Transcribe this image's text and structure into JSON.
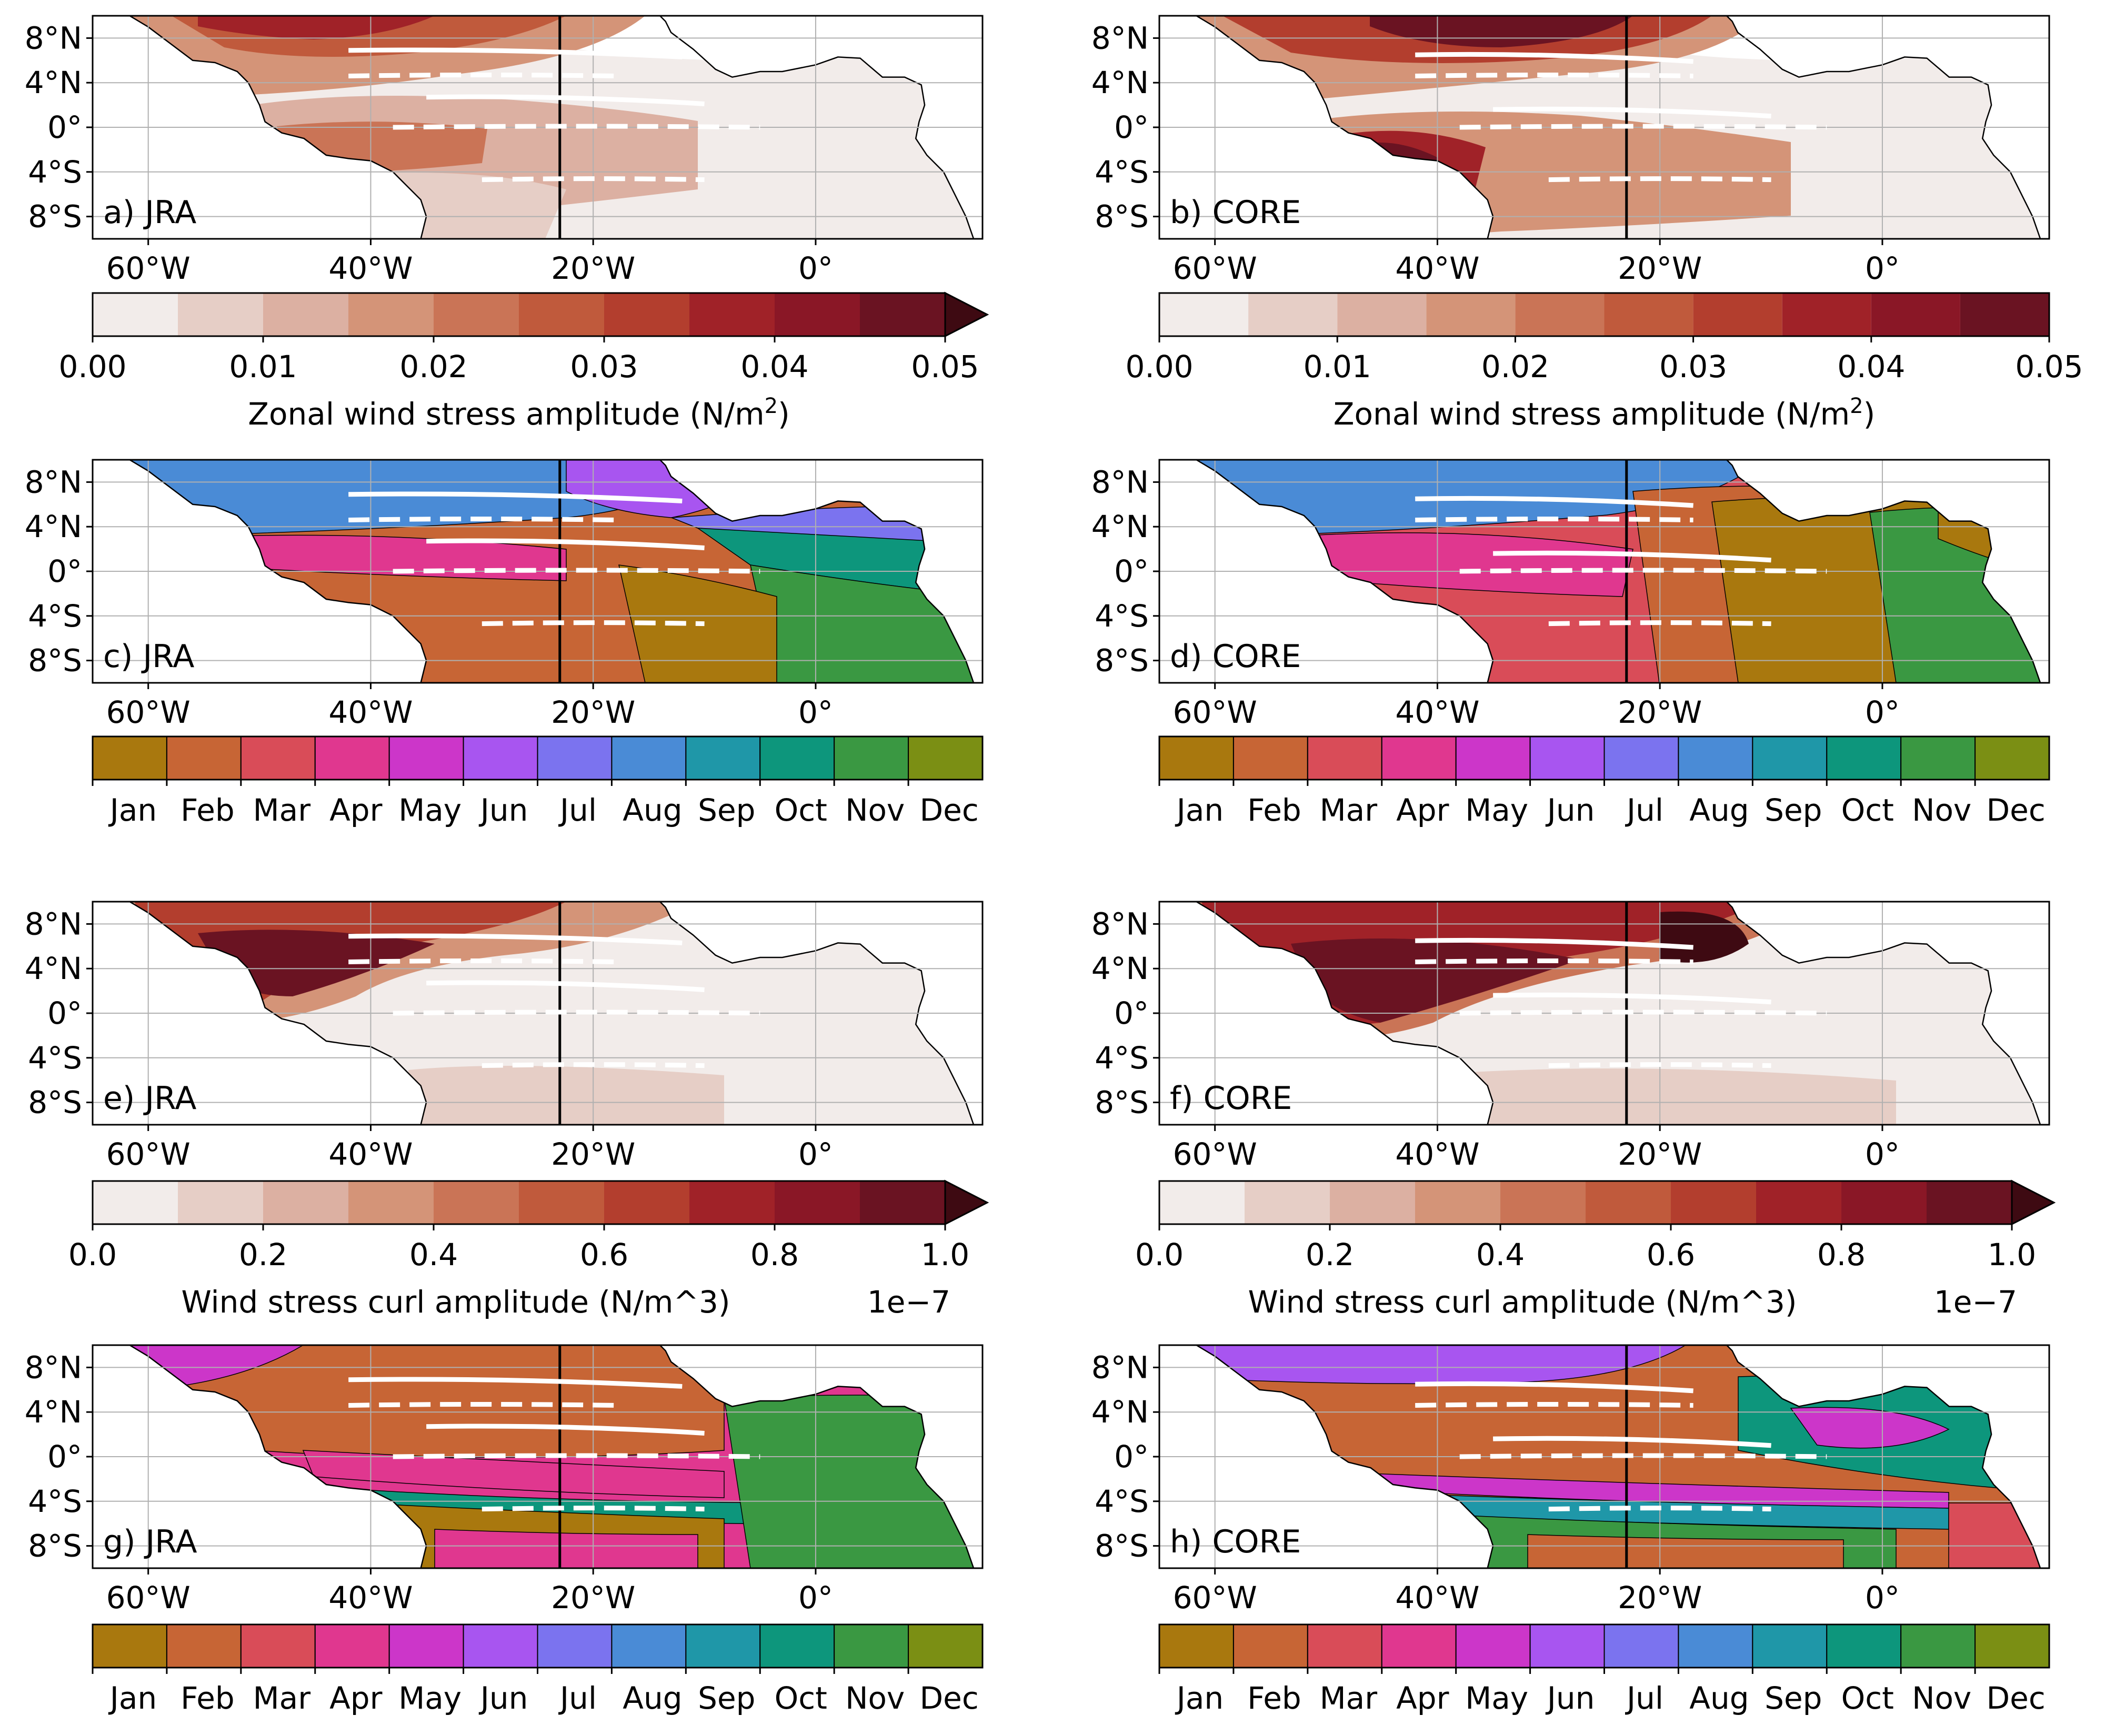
{
  "lat_labels": [
    "8°N",
    "4°N",
    "0°",
    "4°S",
    "8°S"
  ],
  "lon_labels": [
    "60°W",
    "40°W",
    "20°W",
    "0°"
  ],
  "panels": [
    {
      "label": "a) JRA",
      "kind": "amp",
      "product": "JRA"
    },
    {
      "label": "b) CORE",
      "kind": "amp",
      "product": "CORE"
    },
    {
      "label": "c) JRA",
      "kind": "phase",
      "product": "JRA"
    },
    {
      "label": "d) CORE",
      "kind": "phase",
      "product": "CORE"
    },
    {
      "label": "e) JRA",
      "kind": "curl",
      "product": "JRA"
    },
    {
      "label": "f) CORE",
      "kind": "curl",
      "product": "CORE"
    },
    {
      "label": "g) JRA",
      "kind": "phase",
      "product": "JRA"
    },
    {
      "label": "h) CORE",
      "kind": "phase",
      "product": "CORE"
    }
  ],
  "colorbars": [
    {
      "id": "cb1",
      "title": "Zonal wind stress amplitude (N/m",
      "title_sup": "2",
      "title_end": ")",
      "ticks": [
        "0.00",
        "0.01",
        "0.02",
        "0.03",
        "0.04",
        "0.05"
      ],
      "extend": true
    },
    {
      "id": "cb2",
      "title": "Zonal wind stress amplitude (N/m",
      "title_sup": "2",
      "title_end": ")",
      "ticks": [
        "0.00",
        "0.01",
        "0.02",
        "0.03",
        "0.04",
        "0.05"
      ],
      "extend": false
    },
    {
      "id": "cb3",
      "months": [
        "Jan",
        "Feb",
        "Mar",
        "Apr",
        "May",
        "Jun",
        "Jul",
        "Aug",
        "Sep",
        "Oct",
        "Nov",
        "Dec"
      ]
    },
    {
      "id": "cb4",
      "months": [
        "Jan",
        "Feb",
        "Mar",
        "Apr",
        "May",
        "Jun",
        "Jul",
        "Aug",
        "Sep",
        "Oct",
        "Nov",
        "Dec"
      ]
    },
    {
      "id": "cb5",
      "title": "Wind stress curl amplitude (N/m^3)",
      "multiplier": "1e−7",
      "ticks": [
        "0.0",
        "0.2",
        "0.4",
        "0.6",
        "0.8",
        "1.0"
      ],
      "extend": true
    },
    {
      "id": "cb6",
      "title": "Wind stress curl amplitude (N/m^3)",
      "multiplier": "1e−7",
      "ticks": [
        "0.0",
        "0.2",
        "0.4",
        "0.6",
        "0.8",
        "1.0"
      ],
      "extend": true
    },
    {
      "id": "cb7",
      "months": [
        "Jan",
        "Feb",
        "Mar",
        "Apr",
        "May",
        "Jun",
        "Jul",
        "Aug",
        "Sep",
        "Oct",
        "Nov",
        "Dec"
      ]
    },
    {
      "id": "cb8",
      "months": [
        "Jan",
        "Feb",
        "Mar",
        "Apr",
        "May",
        "Jun",
        "Jul",
        "Aug",
        "Sep",
        "Oct",
        "Nov",
        "Dec"
      ]
    }
  ],
  "colors": {
    "amplitude_scale": [
      "#f2ecea",
      "#e6cec6",
      "#dcb0a2",
      "#d49478",
      "#ca7456",
      "#c05a3c",
      "#b33e2e",
      "#a02228",
      "#8a1726",
      "#6a1322",
      "#3e0a12"
    ],
    "month_scale": [
      "#a9780e",
      "#c76535",
      "#d94c58",
      "#e0378f",
      "#cc36c9",
      "#a855f0",
      "#7b73ef",
      "#4a8bd6",
      "#1f97a8",
      "#0d967c",
      "#3a9842",
      "#7b8f14"
    ],
    "section_white": "#ffffff",
    "meridian_line": "#000000"
  }
}
